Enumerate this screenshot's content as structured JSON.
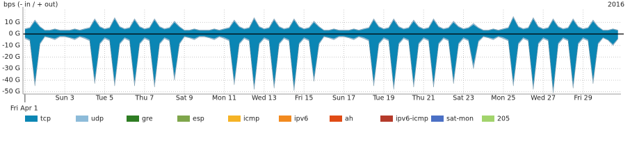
{
  "chart_data": {
    "type": "area",
    "title": "bps (- in / + out)",
    "year": "2016",
    "x": [
      0,
      0.25,
      0.5,
      0.75,
      1,
      1.25,
      1.5,
      1.75,
      2,
      2.25,
      2.5,
      2.75,
      3,
      3.25,
      3.5,
      3.75,
      4,
      4.25,
      4.5,
      4.75,
      5,
      5.25,
      5.5,
      5.75,
      6,
      6.25,
      6.5,
      6.75,
      7,
      7.25,
      7.5,
      7.75,
      8,
      8.25,
      8.5,
      8.75,
      9,
      9.25,
      9.5,
      9.75,
      10,
      10.25,
      10.5,
      10.75,
      11,
      11.25,
      11.5,
      11.75,
      12,
      12.25,
      12.5,
      12.75,
      13,
      13.25,
      13.5,
      13.75,
      14,
      14.25,
      14.5,
      14.75,
      15,
      15.25,
      15.5,
      15.75,
      16,
      16.25,
      16.5,
      16.75,
      17,
      17.25,
      17.5,
      17.75,
      18,
      18.25,
      18.5,
      18.75,
      19,
      19.25,
      19.5,
      19.75,
      20,
      20.25,
      20.5,
      20.75,
      21,
      21.25,
      21.5,
      21.75,
      22,
      22.25,
      22.5,
      22.75,
      23,
      23.25,
      23.5,
      23.75,
      24,
      24.25,
      24.5,
      24.75,
      25,
      25.25,
      25.5,
      25.75,
      26,
      26.25,
      26.5,
      26.75,
      27,
      27.25,
      27.5,
      27.75,
      28,
      28.25,
      28.5,
      28.75,
      29,
      29.25,
      29.5,
      29.75
    ],
    "xlim": [
      -0.1,
      29.9
    ],
    "xticks": [
      {
        "value": 0,
        "label": "Fri Apr 1"
      },
      {
        "value": 2,
        "label": "Sun 3"
      },
      {
        "value": 4,
        "label": "Tue 5"
      },
      {
        "value": 6,
        "label": "Thu 7"
      },
      {
        "value": 8,
        "label": "Sat 9"
      },
      {
        "value": 10,
        "label": "Mon 11"
      },
      {
        "value": 12,
        "label": "Wed 13"
      },
      {
        "value": 14,
        "label": "Fri 15"
      },
      {
        "value": 16,
        "label": "Sun 17"
      },
      {
        "value": 18,
        "label": "Tue 19"
      },
      {
        "value": 20,
        "label": "Thu 21"
      },
      {
        "value": 22,
        "label": "Sat 23"
      },
      {
        "value": 24,
        "label": "Mon 25"
      },
      {
        "value": 26,
        "label": "Wed 27"
      },
      {
        "value": 28,
        "label": "Fri 29"
      }
    ],
    "ylim": [
      -52,
      21
    ],
    "yticks": [
      {
        "value": 10,
        "label": "10 G"
      },
      {
        "value": 0,
        "label": "0 G"
      },
      {
        "value": -10,
        "label": "-10 G"
      },
      {
        "value": -20,
        "label": "-20 G"
      },
      {
        "value": -30,
        "label": "-30 G"
      },
      {
        "value": -40,
        "label": "-40 G"
      },
      {
        "value": -50,
        "label": "-50 G"
      }
    ],
    "grid": true,
    "series": [
      {
        "name": "tcp",
        "color": "#0b86b4",
        "out": [
          4,
          5,
          11,
          6,
          3,
          3,
          4,
          3,
          3,
          3,
          4,
          3,
          4,
          5,
          12,
          6,
          4,
          5,
          13,
          6,
          4,
          5,
          12,
          6,
          4,
          5,
          12,
          6,
          4,
          5,
          10,
          6,
          3,
          3,
          4,
          3,
          3,
          3,
          4,
          3,
          4,
          5,
          11,
          6,
          4,
          5,
          13,
          6,
          4,
          5,
          12,
          6,
          4,
          5,
          12,
          6,
          4,
          5,
          10,
          6,
          3,
          3,
          4,
          3,
          3,
          3,
          4,
          3,
          4,
          5,
          12,
          6,
          4,
          5,
          12,
          6,
          4,
          5,
          11,
          6,
          4,
          5,
          12,
          6,
          4,
          5,
          10,
          6,
          4,
          5,
          8,
          5,
          3,
          3,
          4,
          3,
          4,
          5,
          14,
          6,
          4,
          5,
          13,
          6,
          4,
          5,
          12,
          6,
          4,
          5,
          12,
          6,
          4,
          5,
          11,
          6,
          3,
          3,
          4,
          3
        ],
        "in": [
          -3,
          -5,
          -42,
          -8,
          -2,
          -3,
          -4,
          -2,
          -2,
          -3,
          -4,
          -2,
          -3,
          -5,
          -40,
          -8,
          -3,
          -5,
          -42,
          -8,
          -3,
          -5,
          -42,
          -8,
          -3,
          -5,
          -43,
          -8,
          -3,
          -5,
          -37,
          -8,
          -2,
          -3,
          -4,
          -2,
          -2,
          -3,
          -4,
          -2,
          -3,
          -5,
          -41,
          -8,
          -3,
          -5,
          -45,
          -8,
          -3,
          -5,
          -44,
          -8,
          -3,
          -5,
          -46,
          -8,
          -3,
          -5,
          -38,
          -8,
          -2,
          -3,
          -4,
          -2,
          -2,
          -3,
          -4,
          -2,
          -3,
          -5,
          -42,
          -8,
          -3,
          -5,
          -45,
          -8,
          -3,
          -5,
          -43,
          -8,
          -3,
          -5,
          -43,
          -8,
          -3,
          -5,
          -40,
          -8,
          -3,
          -5,
          -27,
          -6,
          -2,
          -3,
          -4,
          -2,
          -3,
          -5,
          -42,
          -8,
          -3,
          -5,
          -45,
          -8,
          -3,
          -5,
          -48,
          -8,
          -3,
          -5,
          -44,
          -8,
          -3,
          -5,
          -40,
          -8,
          -3,
          -5,
          -9,
          -4
        ]
      },
      {
        "name": "udp",
        "color": "#8dbbd9",
        "out": [
          0.6,
          0.6,
          1.2,
          0.6,
          0.4,
          0.4,
          0.5,
          0.4,
          0.4,
          0.4,
          0.5,
          0.4,
          0.6,
          0.6,
          1.2,
          0.6,
          0.6,
          0.6,
          1.2,
          0.6,
          0.6,
          0.6,
          1.2,
          0.6,
          0.6,
          0.6,
          1.2,
          0.6,
          0.6,
          0.6,
          1.2,
          0.6,
          0.4,
          0.4,
          0.5,
          0.4,
          0.4,
          0.4,
          0.5,
          0.4,
          0.6,
          0.6,
          1.2,
          0.6,
          0.6,
          0.6,
          1.2,
          0.6,
          0.6,
          0.6,
          1.2,
          0.6,
          0.6,
          0.6,
          1.2,
          0.6,
          0.6,
          0.6,
          1.2,
          0.6,
          0.4,
          0.4,
          0.5,
          0.4,
          0.4,
          0.4,
          0.5,
          0.4,
          0.6,
          0.6,
          1.2,
          0.6,
          0.6,
          0.6,
          1.2,
          0.6,
          0.6,
          0.6,
          1.2,
          0.6,
          0.6,
          0.6,
          1.2,
          0.6,
          0.6,
          0.6,
          1.2,
          0.6,
          0.6,
          0.6,
          1.2,
          0.6,
          0.4,
          0.4,
          0.5,
          0.4,
          0.6,
          0.6,
          1.2,
          0.6,
          0.6,
          0.6,
          1.2,
          0.6,
          0.6,
          0.6,
          1.2,
          0.6,
          0.6,
          0.6,
          1.2,
          0.6,
          0.6,
          0.6,
          1.2,
          0.6,
          0.4,
          0.4,
          0.5,
          0.4
        ],
        "in": [
          -1,
          -1,
          -3,
          -1,
          -0.5,
          -0.5,
          -1,
          -0.5,
          -0.5,
          -0.5,
          -1,
          -0.5,
          -1,
          -1,
          -3,
          -1,
          -1,
          -1,
          -3,
          -1,
          -1,
          -1,
          -3,
          -1,
          -1,
          -1,
          -3,
          -1,
          -1,
          -1,
          -3,
          -1,
          -0.5,
          -0.5,
          -1,
          -0.5,
          -0.5,
          -0.5,
          -1,
          -0.5,
          -1,
          -1,
          -3,
          -1,
          -1,
          -1,
          -3,
          -1,
          -1,
          -1,
          -3,
          -1,
          -1,
          -1,
          -3,
          -1,
          -1,
          -1,
          -3,
          -1,
          -0.5,
          -0.5,
          -1,
          -0.5,
          -0.5,
          -0.5,
          -1,
          -0.5,
          -1,
          -1,
          -3,
          -1,
          -1,
          -1,
          -3,
          -1,
          -1,
          -1,
          -3,
          -1,
          -1,
          -1,
          -3,
          -1,
          -1,
          -1,
          -3,
          -1,
          -1,
          -1,
          -3,
          -1,
          -0.5,
          -0.5,
          -1,
          -0.5,
          -1,
          -1,
          -3,
          -1,
          -1,
          -1,
          -3,
          -1,
          -1,
          -1,
          -3,
          -1,
          -1,
          -1,
          -3,
          -1,
          -1,
          -1,
          -3,
          -1,
          -0.5,
          -0.5,
          -1,
          -0.5
        ]
      },
      {
        "name": "gre",
        "color": "#2e7d23"
      },
      {
        "name": "esp",
        "color": "#7fa64b"
      },
      {
        "name": "icmp",
        "color": "#f5b326"
      },
      {
        "name": "ipv6",
        "color": "#f28a1f"
      },
      {
        "name": "ah",
        "color": "#e04b15"
      },
      {
        "name": "ipv6-icmp",
        "color": "#b53b2b"
      },
      {
        "name": "sat-mon",
        "color": "#4b70c5"
      },
      {
        "name": "205",
        "color": "#a2d46c"
      }
    ]
  }
}
